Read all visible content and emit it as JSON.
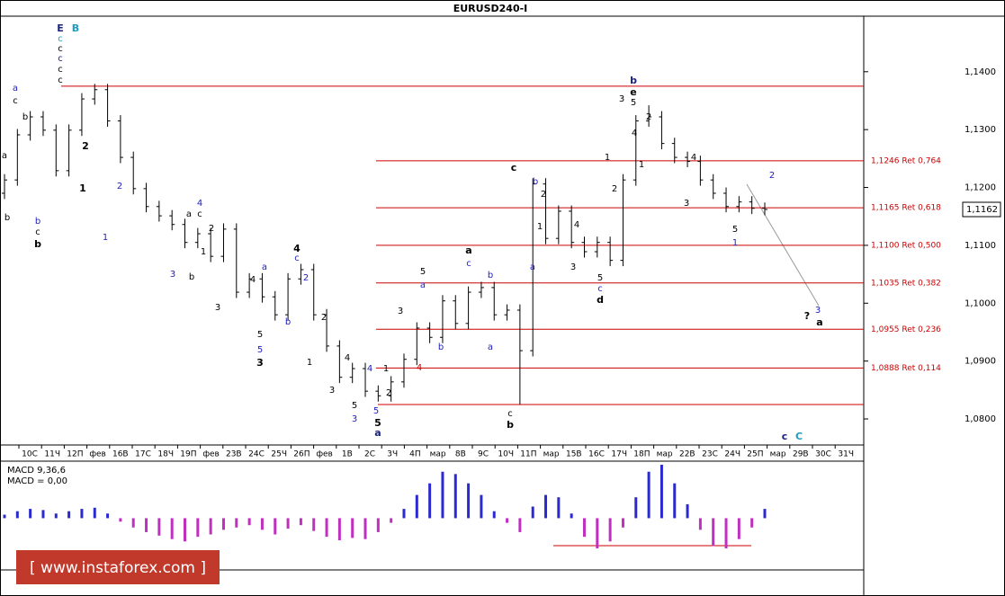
{
  "chart_data": {
    "type": "ohlc",
    "title": "EURUSD240-I",
    "ylim": [
      1.0755,
      1.1496
    ],
    "yticks": [
      {
        "value": 1.08,
        "label": "1,0800"
      },
      {
        "value": 1.09,
        "label": "1,0900"
      },
      {
        "value": 1.1,
        "label": "1,1000"
      },
      {
        "value": 1.11,
        "label": "1,1100"
      },
      {
        "value": 1.12,
        "label": "1,1200"
      },
      {
        "value": 1.13,
        "label": "1,1300"
      },
      {
        "value": 1.14,
        "label": "1,1400"
      }
    ],
    "current_price": {
      "value": 1.1162,
      "label": "1,1162"
    },
    "bar_color": "#000000",
    "level_color": "#cc0000",
    "levels": [
      1.1375,
      {
        "value": 1.1246,
        "label": "1,1246 Ret 0,764"
      },
      {
        "value": 1.1165,
        "label": "1,1165 Ret 0,618"
      },
      {
        "value": 1.11,
        "label": "1,1100 Ret 0,500"
      },
      {
        "value": 1.1035,
        "label": "1,1035 Ret 0,382"
      },
      {
        "value": 1.0955,
        "label": "1,0955 Ret 0,236"
      },
      {
        "value": 1.0888,
        "label": "1,0888 Ret 0,114"
      },
      1.0825
    ],
    "x_labels": [
      "10С",
      "11Ч",
      "12П",
      "фев",
      "16В",
      "17С",
      "18Ч",
      "19П",
      "фев",
      "23В",
      "24С",
      "25Ч",
      "26П",
      "фев",
      "1В",
      "2С",
      "3Ч",
      "4П",
      "мар",
      "8В",
      "9С",
      "10Ч",
      "11П",
      "мар",
      "15В",
      "16С",
      "17Ч",
      "18П",
      "мар",
      "22В",
      "23С",
      "24Ч",
      "25П",
      "мар",
      "29В",
      "30С",
      "31Ч"
    ],
    "bars": [
      [
        1.119,
        1.1223,
        1.118,
        1.1213
      ],
      [
        1.1213,
        1.1301,
        1.1203,
        1.1291
      ],
      [
        1.1291,
        1.1332,
        1.1281,
        1.1322
      ],
      [
        1.1322,
        1.1332,
        1.1289,
        1.1299
      ],
      [
        1.1299,
        1.1309,
        1.1219,
        1.1229
      ],
      [
        1.1229,
        1.1309,
        1.1219,
        1.1299
      ],
      [
        1.1299,
        1.1363,
        1.1289,
        1.1353
      ],
      [
        1.1353,
        1.1379,
        1.1343,
        1.1369
      ],
      [
        1.1369,
        1.1379,
        1.1305,
        1.1315
      ],
      [
        1.1315,
        1.1325,
        1.1242,
        1.1252
      ],
      [
        1.1252,
        1.1262,
        1.1188,
        1.1198
      ],
      [
        1.1198,
        1.1208,
        1.1157,
        1.1167
      ],
      [
        1.1167,
        1.1177,
        1.1141,
        1.1151
      ],
      [
        1.1151,
        1.1161,
        1.1126,
        1.1136
      ],
      [
        1.1136,
        1.1146,
        1.1095,
        1.1105
      ],
      [
        1.1105,
        1.113,
        1.1095,
        1.112
      ],
      [
        1.112,
        1.113,
        1.1071,
        1.1081
      ],
      [
        1.1081,
        1.1138,
        1.1071,
        1.1128
      ],
      [
        1.1128,
        1.1138,
        1.1009,
        1.1019
      ],
      [
        1.1019,
        1.1052,
        1.1009,
        1.1042
      ],
      [
        1.1042,
        1.1052,
        1.1001,
        1.1011
      ],
      [
        1.1011,
        1.1021,
        1.097,
        1.098
      ],
      [
        1.098,
        1.1052,
        1.097,
        1.1042
      ],
      [
        1.1042,
        1.1068,
        1.1032,
        1.1058
      ],
      [
        1.1058,
        1.1068,
        1.097,
        1.098
      ],
      [
        1.098,
        1.099,
        1.0916,
        1.0926
      ],
      [
        1.0926,
        1.0936,
        1.0862,
        1.0872
      ],
      [
        1.0872,
        1.0897,
        1.0862,
        1.0887
      ],
      [
        1.0887,
        1.0897,
        1.0838,
        1.0848
      ],
      [
        1.0848,
        1.0858,
        1.083,
        1.084
      ],
      [
        1.084,
        1.0874,
        1.083,
        1.0864
      ],
      [
        1.0864,
        1.0913,
        1.0854,
        1.0903
      ],
      [
        1.0903,
        1.0967,
        1.0893,
        1.0957
      ],
      [
        1.0957,
        1.0967,
        1.0931,
        1.0941
      ],
      [
        1.0941,
        1.1014,
        1.0931,
        1.1004
      ],
      [
        1.1004,
        1.1014,
        1.0955,
        1.0965
      ],
      [
        1.0965,
        1.1029,
        1.0955,
        1.1019
      ],
      [
        1.1019,
        1.1037,
        1.1009,
        1.1027
      ],
      [
        1.1027,
        1.1037,
        1.097,
        1.098
      ],
      [
        1.098,
        1.0998,
        1.097,
        1.0988
      ],
      [
        1.0988,
        1.0998,
        1.0825,
        1.0918
      ],
      [
        1.0918,
        1.1216,
        1.0908,
        1.1206
      ],
      [
        1.1206,
        1.1216,
        1.1102,
        1.1112
      ],
      [
        1.1112,
        1.1169,
        1.1102,
        1.1159
      ],
      [
        1.1159,
        1.1169,
        1.1095,
        1.1105
      ],
      [
        1.1105,
        1.1115,
        1.1079,
        1.1089
      ],
      [
        1.1089,
        1.1115,
        1.1079,
        1.1105
      ],
      [
        1.1105,
        1.1115,
        1.1064,
        1.1074
      ],
      [
        1.1074,
        1.1223,
        1.1064,
        1.1213
      ],
      [
        1.1213,
        1.1325,
        1.1203,
        1.1315
      ],
      [
        1.1315,
        1.1342,
        1.1305,
        1.1322
      ],
      [
        1.1322,
        1.1332,
        1.1266,
        1.1276
      ],
      [
        1.1276,
        1.1286,
        1.1242,
        1.1252
      ],
      [
        1.1252,
        1.1262,
        1.1235,
        1.1245
      ],
      [
        1.1245,
        1.1255,
        1.1203,
        1.1213
      ],
      [
        1.1213,
        1.1223,
        1.118,
        1.119
      ],
      [
        1.119,
        1.12,
        1.1157,
        1.1167
      ],
      [
        1.1167,
        1.1185,
        1.1157,
        1.1175
      ],
      [
        1.1175,
        1.1185,
        1.1154,
        1.1164
      ],
      [
        1.1164,
        1.1174,
        1.1152,
        1.1162
      ]
    ],
    "annotations": [
      {
        "text": "E",
        "color": "#1a237e"
      },
      {
        "text": "B",
        "color": "#1e9bc0"
      },
      {
        "text": "c",
        "color": "#1e9bc0"
      },
      {
        "text": "c",
        "color": "#000000"
      },
      {
        "text": "c",
        "color": "#1a237e"
      },
      {
        "text": "c",
        "color": "#000000"
      },
      {
        "text": "c",
        "color": "#000000"
      },
      {
        "text": "a",
        "color": "#2020c0"
      },
      {
        "text": "c",
        "color": "#000000"
      },
      {
        "text": "b",
        "color": "#000000"
      },
      {
        "text": "a",
        "color": "#000000"
      },
      {
        "text": "b",
        "color": "#000000"
      },
      {
        "text": "c",
        "color": "#000000"
      },
      {
        "text": "b",
        "color": "#2020c0"
      },
      {
        "text": "b",
        "color": "#000000"
      },
      {
        "text": "2",
        "color": "#000000"
      },
      {
        "text": "1",
        "color": "#000000"
      },
      {
        "text": "2",
        "color": "#2020c0"
      },
      {
        "text": "1",
        "color": "#2020c0"
      },
      {
        "text": "4",
        "color": "#2020c0"
      },
      {
        "text": "a",
        "color": "#000000"
      },
      {
        "text": "c",
        "color": "#000000"
      },
      {
        "text": "2",
        "color": "#000000"
      },
      {
        "text": "1",
        "color": "#000000"
      },
      {
        "text": "3",
        "color": "#2020c0"
      },
      {
        "text": "b",
        "color": "#000000"
      },
      {
        "text": "4",
        "color": "#000000"
      },
      {
        "text": "c",
        "color": "#2020c0"
      },
      {
        "text": "a",
        "color": "#2020c0"
      },
      {
        "text": "4",
        "color": "#000000"
      },
      {
        "text": "2",
        "color": "#2020c0"
      },
      {
        "text": "3",
        "color": "#000000"
      },
      {
        "text": "5",
        "color": "#000000"
      },
      {
        "text": "5",
        "color": "#2020c0"
      },
      {
        "text": "3",
        "color": "#000000"
      },
      {
        "text": "b",
        "color": "#2020c0"
      },
      {
        "text": "2",
        "color": "#000000"
      },
      {
        "text": "1",
        "color": "#000000"
      },
      {
        "text": "4",
        "color": "#000000"
      },
      {
        "text": "3",
        "color": "#000000"
      },
      {
        "text": "5",
        "color": "#000000"
      },
      {
        "text": "3",
        "color": "#2020c0"
      },
      {
        "text": "4",
        "color": "#2020c0"
      },
      {
        "text": "1",
        "color": "#000000"
      },
      {
        "text": "2",
        "color": "#000000"
      },
      {
        "text": "5",
        "color": "#2020c0"
      },
      {
        "text": "5",
        "color": "#000000"
      },
      {
        "text": "a",
        "color": "#1a237e"
      },
      {
        "text": "3",
        "color": "#000000"
      },
      {
        "text": "5",
        "color": "#000000"
      },
      {
        "text": "a",
        "color": "#2020c0"
      },
      {
        "text": "b",
        "color": "#2020c0"
      },
      {
        "text": "4",
        "color": "#cc0000"
      },
      {
        "text": "a",
        "color": "#000000"
      },
      {
        "text": "c",
        "color": "#2020c0"
      },
      {
        "text": "b",
        "color": "#2020c0"
      },
      {
        "text": "a",
        "color": "#2020c0"
      },
      {
        "text": "c",
        "color": "#000000"
      },
      {
        "text": "b",
        "color": "#000000"
      },
      {
        "text": "c",
        "color": "#000000"
      },
      {
        "text": "b",
        "color": "#2020c0"
      },
      {
        "text": "2",
        "color": "#000000"
      },
      {
        "text": "1",
        "color": "#000000"
      },
      {
        "text": "a",
        "color": "#2020c0"
      },
      {
        "text": "3",
        "color": "#000000"
      },
      {
        "text": "4",
        "color": "#000000"
      },
      {
        "text": "5",
        "color": "#000000"
      },
      {
        "text": "c",
        "color": "#2020c0"
      },
      {
        "text": "d",
        "color": "#000000"
      },
      {
        "text": "1",
        "color": "#000000"
      },
      {
        "text": "2",
        "color": "#000000"
      },
      {
        "text": "3",
        "color": "#000000"
      },
      {
        "text": "b",
        "color": "#1a237e"
      },
      {
        "text": "e",
        "color": "#000000"
      },
      {
        "text": "5",
        "color": "#000000"
      },
      {
        "text": "4",
        "color": "#000000"
      },
      {
        "text": "2",
        "color": "#000000"
      },
      {
        "text": "1",
        "color": "#000000"
      },
      {
        "text": "4",
        "color": "#000000"
      },
      {
        "text": "3",
        "color": "#000000"
      },
      {
        "text": "5",
        "color": "#000000"
      },
      {
        "text": "1",
        "color": "#2020c0"
      },
      {
        "text": "2",
        "color": "#2020c0"
      },
      {
        "text": "3",
        "color": "#2020c0"
      },
      {
        "text": "?",
        "color": "#000000"
      },
      {
        "text": "a",
        "color": "#000000"
      },
      {
        "text": "c",
        "color": "#1a237e"
      },
      {
        "text": "C",
        "color": "#1e9bc0"
      }
    ],
    "indicator": {
      "title": "MACD 9,36,6",
      "value_text": "MACD = 0,00",
      "ylim": [
        -0.0043,
        0.0046
      ],
      "positive_color": "#2a2ad0",
      "negative_color": "#c030c0",
      "values": [
        0.0003,
        0.0006,
        0.0008,
        0.0007,
        0.0004,
        0.0006,
        0.0008,
        0.0009,
        0.0004,
        -0.0003,
        -0.0008,
        -0.0012,
        -0.0015,
        -0.0018,
        -0.002,
        -0.0016,
        -0.0014,
        -0.001,
        -0.0008,
        -0.0006,
        -0.001,
        -0.0014,
        -0.0009,
        -0.0006,
        -0.0011,
        -0.0016,
        -0.0019,
        -0.0017,
        -0.0018,
        -0.0012,
        -0.0004,
        0.0008,
        0.002,
        0.003,
        0.004,
        0.0038,
        0.003,
        0.002,
        0.0006,
        -0.0004,
        -0.0012,
        0.001,
        0.002,
        0.0018,
        0.0004,
        -0.0016,
        -0.0026,
        -0.002,
        -0.0008,
        0.0018,
        0.004,
        0.0046,
        0.003,
        0.0012,
        -0.001,
        -0.0024,
        -0.0026,
        -0.0018,
        -0.0008,
        0.0008
      ]
    },
    "watermark": "[ www.instaforex.com ]"
  }
}
